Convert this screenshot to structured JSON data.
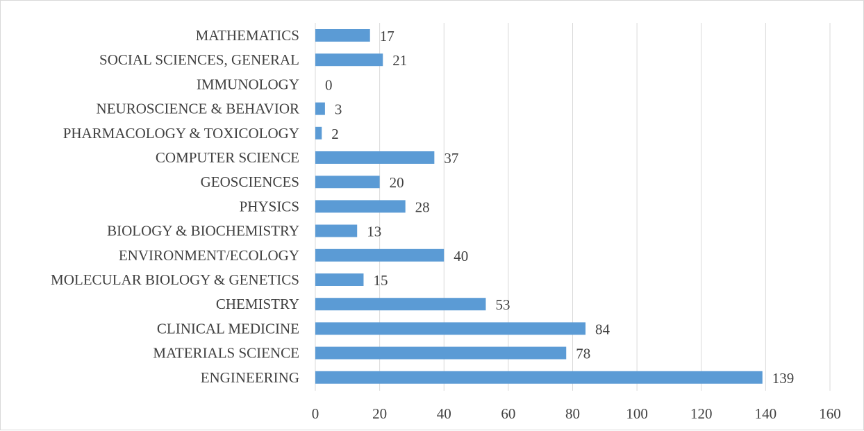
{
  "chart_data": {
    "type": "bar",
    "orientation": "horizontal",
    "categories": [
      "MATHEMATICS",
      "SOCIAL SCIENCES, GENERAL",
      "IMMUNOLOGY",
      "NEUROSCIENCE & BEHAVIOR",
      "PHARMACOLOGY & TOXICOLOGY",
      "COMPUTER SCIENCE",
      "GEOSCIENCES",
      "PHYSICS",
      "BIOLOGY & BIOCHEMISTRY",
      "ENVIRONMENT/ECOLOGY",
      "MOLECULAR BIOLOGY & GENETICS",
      "CHEMISTRY",
      "CLINICAL MEDICINE",
      "MATERIALS SCIENCE",
      "ENGINEERING"
    ],
    "values": [
      17,
      21,
      0,
      3,
      2,
      37,
      20,
      28,
      13,
      40,
      15,
      53,
      84,
      78,
      139
    ],
    "xlim": [
      0,
      160
    ],
    "xticks": [
      0,
      20,
      40,
      60,
      80,
      100,
      120,
      140,
      160
    ],
    "grid": true,
    "data_labels": true,
    "legend": "none",
    "bar_color": "#5b9bd5"
  }
}
